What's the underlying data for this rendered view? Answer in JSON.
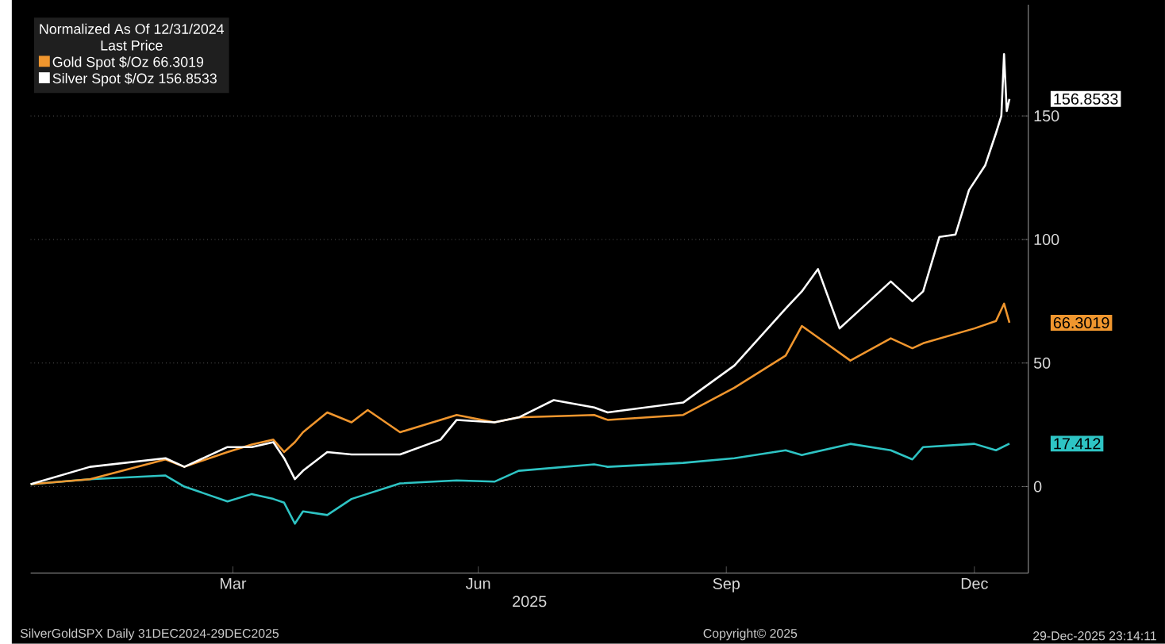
{
  "chart_data": {
    "type": "line",
    "legend_title": "Normalized As Of 12/31/2024",
    "subtitle": "Last Price",
    "xlabel": "2025",
    "xlim": [
      "2024-12-31",
      "2026-01-05"
    ],
    "ylim": [
      -35,
      195
    ],
    "xticks": [
      {
        "value": "2025-03-16",
        "label": "Mar"
      },
      {
        "value": "2025-06-15",
        "label": "Jun"
      },
      {
        "value": "2025-09-15",
        "label": "Sep"
      },
      {
        "value": "2025-12-16",
        "label": "Dec"
      }
    ],
    "yticks": [
      0,
      50,
      100,
      150
    ],
    "grid": "y",
    "legend": "top left",
    "marker": "none",
    "line_style": "solid",
    "series": [
      {
        "color": "#2ec4c4",
        "x": [
          "2024-12-31",
          "2025-01-22",
          "2025-02-19",
          "2025-02-26",
          "2025-03-14",
          "2025-03-23",
          "2025-03-31",
          "2025-04-04",
          "2025-04-08",
          "2025-04-11",
          "2025-04-20",
          "2025-04-29",
          "2025-05-17",
          "2025-06-07",
          "2025-06-21",
          "2025-06-30",
          "2025-07-28",
          "2025-08-02",
          "2025-08-30",
          "2025-09-18",
          "2025-10-07",
          "2025-10-13",
          "2025-10-31",
          "2025-11-15",
          "2025-11-23",
          "2025-11-27",
          "2025-12-16",
          "2025-12-24",
          "2025-12-29"
        ],
        "values": [
          1,
          3,
          4.5,
          0,
          -6,
          -3,
          -5,
          -6.5,
          -15,
          -10,
          -11.5,
          -5,
          1.3,
          2.5,
          2,
          6.4,
          9,
          8,
          9.6,
          11.5,
          14.7,
          12.8,
          17.3,
          14.7,
          11,
          16,
          17.3,
          14.7,
          17.412
        ]
      },
      {
        "name": "Gold Spot $/Oz 66.3019",
        "color": "#f0962e",
        "x": [
          "2024-12-31",
          "2025-01-22",
          "2025-02-19",
          "2025-02-26",
          "2025-03-14",
          "2025-03-23",
          "2025-03-31",
          "2025-04-04",
          "2025-04-08",
          "2025-04-11",
          "2025-04-20",
          "2025-04-29",
          "2025-05-05",
          "2025-05-17",
          "2025-06-07",
          "2025-06-21",
          "2025-06-30",
          "2025-07-28",
          "2025-08-02",
          "2025-08-30",
          "2025-09-18",
          "2025-10-07",
          "2025-10-13",
          "2025-10-31",
          "2025-11-15",
          "2025-11-23",
          "2025-11-27",
          "2025-12-16",
          "2025-12-24",
          "2025-12-27",
          "2025-12-29"
        ],
        "values": [
          1,
          3,
          11,
          8,
          14,
          17,
          19,
          14,
          18,
          22,
          30,
          26,
          31,
          22,
          29,
          26,
          28,
          29,
          27,
          29,
          40,
          53,
          65,
          51,
          60,
          56,
          58,
          64,
          67,
          74,
          66.3019
        ]
      },
      {
        "name": "Silver Spot $/Oz 156.8533",
        "color": "#ffffff",
        "x": [
          "2024-12-31",
          "2025-01-22",
          "2025-02-19",
          "2025-02-26",
          "2025-03-14",
          "2025-03-23",
          "2025-03-31",
          "2025-04-04",
          "2025-04-08",
          "2025-04-11",
          "2025-04-20",
          "2025-04-29",
          "2025-05-17",
          "2025-06-01",
          "2025-06-07",
          "2025-06-21",
          "2025-06-30",
          "2025-07-13",
          "2025-07-28",
          "2025-08-02",
          "2025-08-30",
          "2025-09-18",
          "2025-10-07",
          "2025-10-13",
          "2025-10-19",
          "2025-10-27",
          "2025-11-15",
          "2025-11-23",
          "2025-11-27",
          "2025-12-03",
          "2025-12-09",
          "2025-12-14",
          "2025-12-20",
          "2025-12-24",
          "2025-12-26",
          "2025-12-27",
          "2025-12-28",
          "2025-12-29"
        ],
        "values": [
          1,
          8,
          11.5,
          8,
          16,
          16,
          18,
          11.5,
          3,
          6.4,
          14,
          13,
          13,
          19,
          27,
          26,
          28,
          35,
          32,
          30,
          34,
          49,
          72,
          79,
          88,
          64,
          83,
          75,
          79,
          101,
          102,
          120,
          130,
          143,
          150,
          175,
          152,
          156.8533
        ]
      }
    ],
    "annotations": [
      {
        "text": "156.8533",
        "x": "2025-12-29",
        "y": 156.8533
      },
      {
        "text": "66.3019",
        "x": "2025-12-29",
        "y": 66.3019
      },
      {
        "text": "17.412",
        "x": "2025-12-29",
        "y": 17.412
      },
      "SilverGoldSPX Daily 31DEC2024-29DEC2025",
      "Copyright© 2025",
      "29-Dec-2025 23:14:11"
    ]
  }
}
